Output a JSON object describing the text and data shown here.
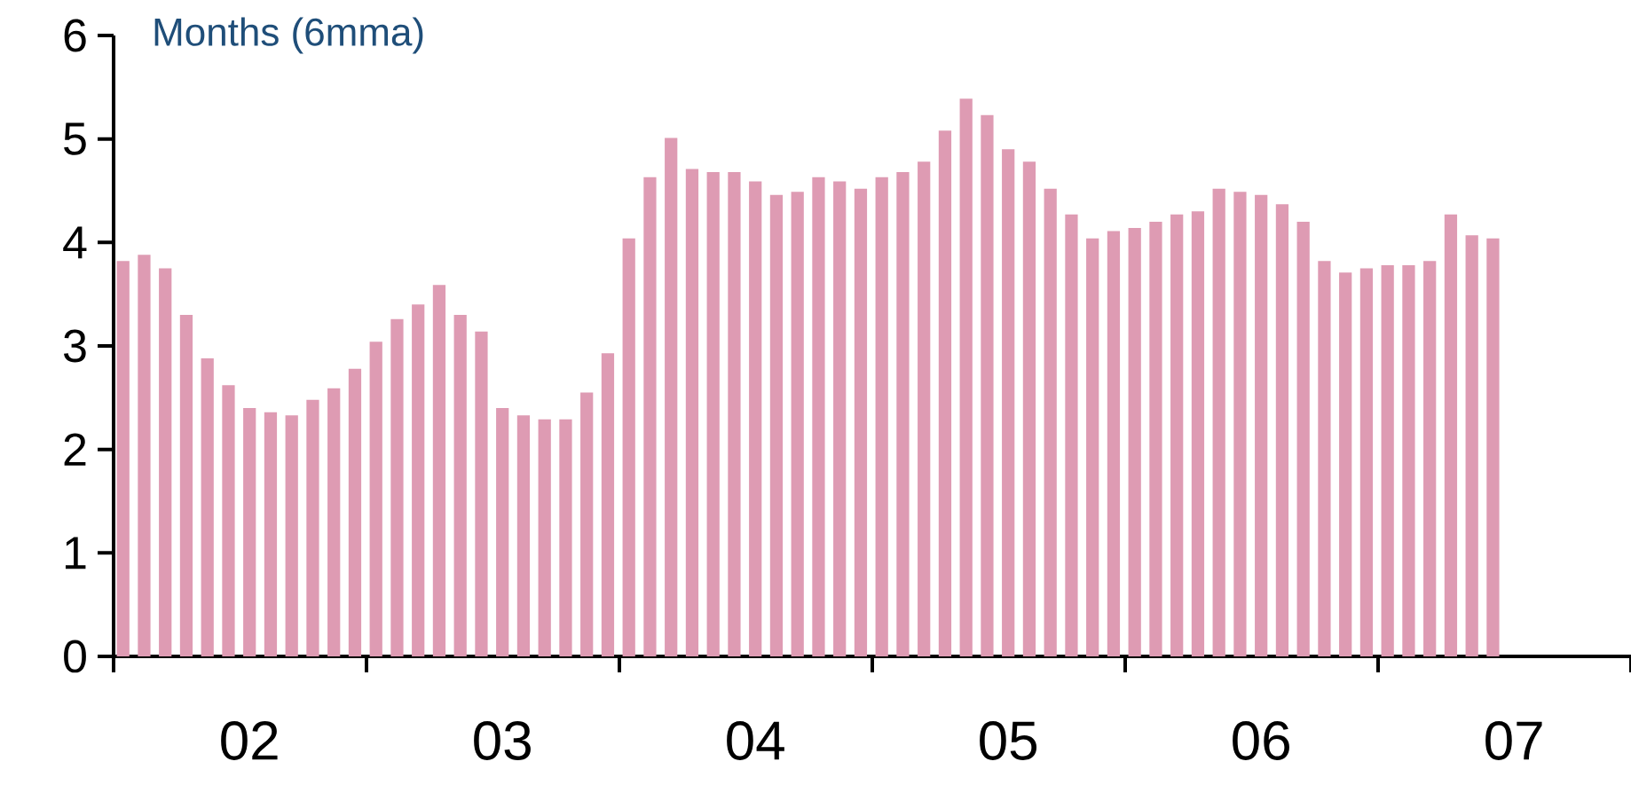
{
  "chart_data": {
    "type": "bar",
    "ylabel": "Months (6mma)",
    "color": "#de9bb3",
    "categories": [
      null,
      null,
      null,
      null,
      null,
      null,
      "02",
      null,
      null,
      null,
      null,
      null,
      null,
      null,
      null,
      null,
      null,
      null,
      "03",
      null,
      null,
      null,
      null,
      null,
      null,
      null,
      null,
      null,
      null,
      null,
      "04",
      null,
      null,
      null,
      null,
      null,
      null,
      null,
      null,
      null,
      null,
      null,
      "05",
      null,
      null,
      null,
      null,
      null,
      null,
      null,
      null,
      null,
      null,
      null,
      "06",
      null,
      null,
      null,
      null,
      null,
      null,
      null,
      null,
      null,
      null,
      null,
      "07",
      null,
      null,
      null,
      null,
      null
    ],
    "values": [
      3.82,
      3.88,
      3.75,
      3.3,
      2.88,
      2.62,
      2.4,
      2.36,
      2.33,
      2.48,
      2.59,
      2.78,
      3.04,
      3.26,
      3.4,
      3.59,
      3.3,
      3.14,
      2.4,
      2.33,
      2.29,
      2.29,
      2.55,
      2.93,
      4.04,
      4.63,
      5.01,
      4.71,
      4.68,
      4.68,
      4.59,
      4.46,
      4.49,
      4.63,
      4.59,
      4.52,
      4.63,
      4.68,
      4.78,
      5.08,
      5.39,
      5.23,
      4.9,
      4.78,
      4.52,
      4.27,
      4.04,
      4.11,
      4.14,
      4.2,
      4.27,
      4.3,
      4.52,
      4.49,
      4.46,
      4.37,
      4.2,
      3.82,
      3.71,
      3.75,
      3.78,
      3.78,
      3.82,
      4.27,
      4.07,
      4.04,
      null,
      null,
      null,
      null,
      null,
      null
    ],
    "ylim": [
      0,
      6
    ],
    "yticks": [
      0,
      1,
      2,
      3,
      4,
      5,
      6
    ],
    "grid": false
  }
}
